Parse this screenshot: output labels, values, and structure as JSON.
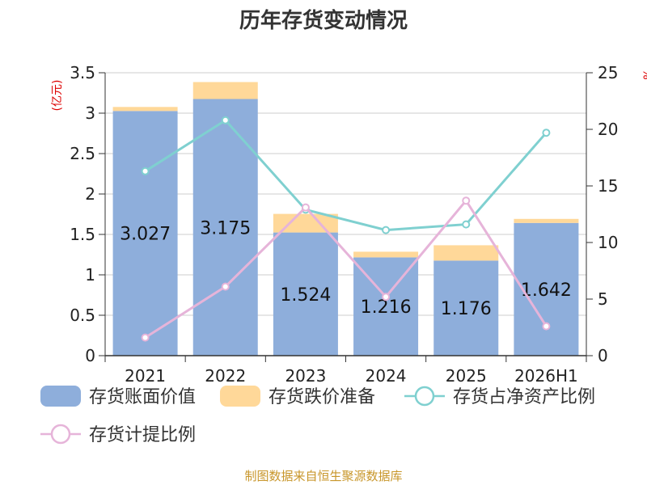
{
  "chart_data": {
    "type": "bar",
    "title": "历年存货变动情况",
    "categories": [
      "2021",
      "2022",
      "2023",
      "2024",
      "2025",
      "2026H1"
    ],
    "y_left": {
      "unit": "(亿元)",
      "min": 0,
      "max": 3.5,
      "ticks": [
        "0",
        "0.5",
        "1",
        "1.5",
        "2",
        "2.5",
        "3",
        "3.5"
      ]
    },
    "y_right": {
      "unit": "%",
      "min": 0,
      "max": 25,
      "ticks": [
        "0",
        "5",
        "10",
        "15",
        "20",
        "25"
      ]
    },
    "series": [
      {
        "name": "存货账面价值",
        "kind": "bar",
        "color": "#8eaedb",
        "values": [
          3.027,
          3.175,
          1.524,
          1.216,
          1.176,
          1.642
        ],
        "labels": [
          "3.027",
          "3.175",
          "1.524",
          "1.216",
          "1.176",
          "1.642"
        ]
      },
      {
        "name": "存货跌价准备",
        "kind": "bar-stacked",
        "color": "#ffd899",
        "values": [
          0.05,
          0.21,
          0.23,
          0.07,
          0.19,
          0.05
        ]
      },
      {
        "name": "存货占净资产比例",
        "kind": "line",
        "axis": "right",
        "color": "#7fd0d0",
        "values": [
          16.3,
          20.8,
          12.9,
          11.1,
          11.6,
          19.7
        ]
      },
      {
        "name": "存货计提比例",
        "kind": "line",
        "axis": "right",
        "color": "#e6b4d9",
        "values": [
          1.6,
          6.1,
          13.1,
          5.2,
          13.7,
          2.6
        ]
      }
    ],
    "grid": true,
    "legend_position": "bottom"
  },
  "source": "制图数据来自恒生聚源数据库"
}
